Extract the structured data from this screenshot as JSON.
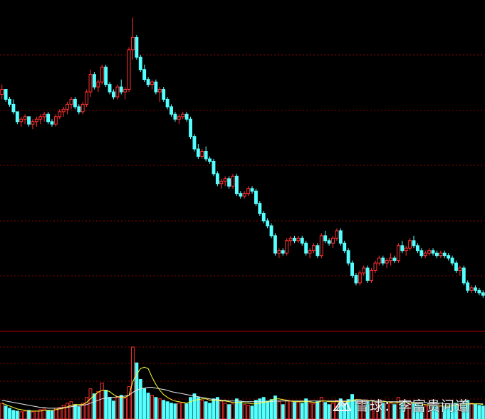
{
  "colors": {
    "background": "#000000",
    "grid": "#8b0000",
    "divider": "#b30000",
    "up": "#ff3030",
    "down": "#54ffff",
    "ma_short": "#ffff33",
    "ma_long": "#e8e8e8"
  },
  "watermark": {
    "text": "雪球：李富贵问道",
    "icon": "snowball-logo"
  },
  "chart_data": [
    {
      "type": "candlestick",
      "panel": "price",
      "ylim": [
        0,
        100
      ],
      "grid": "horizontal-dashed",
      "candles": [
        [
          74,
          78,
          72,
          76
        ],
        [
          76,
          76,
          71,
          72
        ],
        [
          72,
          73,
          69,
          70
        ],
        [
          70,
          72,
          66,
          67
        ],
        [
          67,
          67,
          62,
          63
        ],
        [
          63,
          65,
          61,
          64
        ],
        [
          64,
          66,
          62,
          65
        ],
        [
          65,
          65,
          61,
          62
        ],
        [
          62,
          64,
          60,
          63
        ],
        [
          63,
          65,
          61,
          64
        ],
        [
          64,
          66,
          62,
          65
        ],
        [
          65,
          67,
          63,
          66
        ],
        [
          66,
          67,
          62,
          63
        ],
        [
          63,
          64,
          61,
          62
        ],
        [
          62,
          66,
          61,
          65
        ],
        [
          65,
          68,
          64,
          67
        ],
        [
          67,
          69,
          65,
          68
        ],
        [
          68,
          71,
          66,
          70
        ],
        [
          70,
          73,
          68,
          72
        ],
        [
          72,
          73,
          68,
          69
        ],
        [
          69,
          70,
          66,
          67
        ],
        [
          67,
          71,
          66,
          70
        ],
        [
          70,
          76,
          69,
          75
        ],
        [
          75,
          84,
          73,
          82
        ],
        [
          82,
          83,
          76,
          77
        ],
        [
          77,
          80,
          75,
          79
        ],
        [
          79,
          86,
          78,
          85
        ],
        [
          85,
          86,
          77,
          78
        ],
        [
          78,
          79,
          74,
          75
        ],
        [
          75,
          76,
          72,
          73
        ],
        [
          73,
          78,
          72,
          77
        ],
        [
          77,
          80,
          74,
          75
        ],
        [
          75,
          77,
          72,
          76
        ],
        [
          76,
          93,
          75,
          92
        ],
        [
          92,
          105,
          88,
          97
        ],
        [
          97,
          98,
          88,
          89
        ],
        [
          89,
          90,
          83,
          84
        ],
        [
          84,
          86,
          79,
          80
        ],
        [
          80,
          81,
          77,
          78
        ],
        [
          78,
          80,
          76,
          79
        ],
        [
          79,
          80,
          74,
          75
        ],
        [
          75,
          77,
          71,
          76
        ],
        [
          76,
          77,
          71,
          72
        ],
        [
          72,
          73,
          68,
          69
        ],
        [
          69,
          70,
          65,
          66
        ],
        [
          66,
          67,
          63,
          64
        ],
        [
          64,
          66,
          62,
          65
        ],
        [
          65,
          67,
          64,
          66
        ],
        [
          66,
          67,
          63,
          64
        ],
        [
          64,
          65,
          56,
          57
        ],
        [
          57,
          58,
          51,
          52
        ],
        [
          52,
          54,
          48,
          49
        ],
        [
          49,
          52,
          48,
          51
        ],
        [
          51,
          53,
          47,
          48
        ],
        [
          48,
          49,
          46,
          47
        ],
        [
          47,
          48,
          41,
          42
        ],
        [
          42,
          43,
          37,
          38
        ],
        [
          38,
          40,
          36,
          39
        ],
        [
          39,
          41,
          37,
          40
        ],
        [
          40,
          41,
          36,
          37
        ],
        [
          37,
          42,
          36,
          41
        ],
        [
          41,
          42,
          33,
          34
        ],
        [
          34,
          35,
          32,
          33
        ],
        [
          33,
          35,
          32,
          34
        ],
        [
          34,
          37,
          33,
          36
        ],
        [
          36,
          37,
          34,
          35
        ],
        [
          35,
          36,
          29,
          30
        ],
        [
          30,
          31,
          25,
          26
        ],
        [
          26,
          27,
          22,
          23
        ],
        [
          23,
          24,
          20,
          21
        ],
        [
          21,
          22,
          16,
          17
        ],
        [
          17,
          18,
          9,
          10
        ],
        [
          10,
          12,
          8,
          11
        ],
        [
          11,
          12,
          9,
          10
        ],
        [
          10,
          16,
          9,
          15
        ],
        [
          15,
          17,
          13,
          16
        ],
        [
          16,
          17,
          14,
          15
        ],
        [
          15,
          17,
          14,
          16
        ],
        [
          16,
          17,
          13,
          14
        ],
        [
          14,
          15,
          9,
          10
        ],
        [
          10,
          12,
          8,
          11
        ],
        [
          11,
          14,
          10,
          13
        ],
        [
          13,
          14,
          8,
          9
        ],
        [
          9,
          18,
          8,
          17
        ],
        [
          17,
          19,
          14,
          15
        ],
        [
          15,
          16,
          13,
          14
        ],
        [
          14,
          17,
          12,
          16
        ],
        [
          16,
          20,
          15,
          19
        ],
        [
          19,
          20,
          13,
          14
        ],
        [
          14,
          15,
          10,
          11
        ],
        [
          11,
          12,
          5,
          6
        ],
        [
          6,
          7,
          0,
          1
        ],
        [
          1,
          2,
          -3,
          -2
        ],
        [
          -2,
          3,
          -3,
          2
        ],
        [
          2,
          5,
          1,
          4
        ],
        [
          4,
          5,
          -2,
          -1
        ],
        [
          -1,
          4,
          -2,
          3
        ],
        [
          3,
          7,
          2,
          6
        ],
        [
          6,
          9,
          5,
          8
        ],
        [
          8,
          9,
          5,
          6
        ],
        [
          6,
          8,
          4,
          7
        ],
        [
          7,
          10,
          5,
          8
        ],
        [
          8,
          9,
          6,
          7
        ],
        [
          7,
          14,
          6,
          13
        ],
        [
          13,
          15,
          10,
          11
        ],
        [
          11,
          13,
          9,
          12
        ],
        [
          12,
          16,
          11,
          15
        ],
        [
          15,
          17,
          12,
          13
        ],
        [
          13,
          14,
          10,
          11
        ],
        [
          11,
          12,
          8,
          9
        ],
        [
          9,
          11,
          8,
          10
        ],
        [
          10,
          12,
          9,
          11
        ],
        [
          11,
          12,
          9,
          10
        ],
        [
          10,
          11,
          8,
          9
        ],
        [
          9,
          11,
          8,
          10
        ],
        [
          10,
          11,
          8,
          9
        ],
        [
          9,
          10,
          7,
          8
        ],
        [
          8,
          9,
          5,
          6
        ],
        [
          6,
          7,
          2,
          3
        ],
        [
          3,
          5,
          1,
          4
        ],
        [
          4,
          5,
          -3,
          -2
        ],
        [
          -2,
          -1,
          -6,
          -5
        ],
        [
          -5,
          -3,
          -6,
          -4
        ],
        [
          -4,
          -3,
          -6,
          -5
        ],
        [
          -5,
          -4,
          -7,
          -6
        ],
        [
          -6,
          -5,
          -8,
          -7
        ]
      ]
    },
    {
      "type": "bar",
      "panel": "volume",
      "ylim": [
        0,
        100
      ],
      "values": [
        22,
        18,
        15,
        12,
        11,
        10,
        11,
        12,
        10,
        11,
        13,
        14,
        12,
        11,
        15,
        16,
        19,
        22,
        24,
        20,
        17,
        22,
        30,
        42,
        35,
        38,
        50,
        40,
        30,
        25,
        30,
        33,
        29,
        45,
        100,
        78,
        55,
        42,
        36,
        33,
        30,
        28,
        26,
        24,
        22,
        21,
        22,
        23,
        21,
        30,
        35,
        30,
        26,
        24,
        22,
        28,
        30,
        25,
        22,
        20,
        21,
        28,
        24,
        20,
        19,
        18,
        26,
        28,
        30,
        25,
        27,
        32,
        24,
        20,
        26,
        25,
        23,
        24,
        22,
        28,
        22,
        21,
        24,
        30,
        23,
        20,
        22,
        26,
        28,
        22,
        27,
        34,
        26,
        23,
        24,
        25,
        22,
        24,
        26,
        22,
        21,
        22,
        20,
        30,
        22,
        20,
        24,
        22,
        20,
        19,
        18,
        19,
        18,
        17,
        18,
        17,
        18,
        20,
        22,
        19,
        23,
        26,
        22,
        20,
        19,
        18
      ],
      "ma_short": [
        22,
        20,
        18,
        16,
        14,
        13,
        12,
        11,
        11,
        11,
        11,
        12,
        12,
        12,
        13,
        14,
        15,
        17,
        19,
        20,
        20,
        20,
        23,
        28,
        33,
        37,
        40,
        40,
        38,
        34,
        31,
        30,
        30,
        33,
        52,
        62,
        70,
        72,
        70,
        58,
        48,
        40,
        34,
        30,
        27,
        25,
        24,
        23,
        22,
        24,
        26,
        27,
        28,
        28,
        26,
        26,
        26,
        25,
        25,
        24,
        23,
        23,
        23,
        22,
        22,
        21,
        21,
        22,
        23,
        24,
        26,
        28,
        28,
        27,
        26,
        25,
        24,
        24,
        24,
        24,
        24,
        23,
        23,
        25,
        25,
        24,
        24,
        24,
        24,
        24,
        24,
        26,
        27,
        27,
        26,
        26,
        25,
        24,
        24,
        24,
        24,
        23,
        22,
        23,
        23,
        23,
        22,
        22,
        21,
        21,
        20,
        19,
        19,
        18,
        18,
        18,
        18,
        18,
        19,
        19,
        20,
        21,
        21,
        21,
        21,
        20
      ],
      "ma_long": [
        26,
        25,
        24,
        23,
        22,
        21,
        20,
        19,
        18,
        17,
        16,
        16,
        15,
        15,
        15,
        15,
        16,
        16,
        17,
        18,
        18,
        19,
        20,
        22,
        24,
        26,
        28,
        29,
        30,
        30,
        31,
        31,
        32,
        33,
        37,
        40,
        42,
        43,
        44,
        44,
        43,
        42,
        41,
        40,
        38,
        37,
        36,
        35,
        34,
        33,
        32,
        31,
        30,
        29,
        28,
        27,
        27,
        26,
        26,
        25,
        25,
        25,
        25,
        24,
        24,
        24,
        24,
        24,
        24,
        24,
        24,
        25,
        25,
        25,
        25,
        25,
        25,
        25,
        25,
        25,
        25,
        25,
        25,
        25,
        25,
        25,
        25,
        25,
        25,
        25,
        25,
        25,
        25,
        25,
        25,
        25,
        25,
        25,
        25,
        25,
        24,
        24,
        24,
        24,
        24,
        24,
        24,
        23,
        23,
        23,
        23,
        22,
        22,
        22,
        22,
        21,
        21,
        21,
        21,
        21,
        21,
        21,
        21,
        21,
        21,
        21
      ]
    }
  ]
}
